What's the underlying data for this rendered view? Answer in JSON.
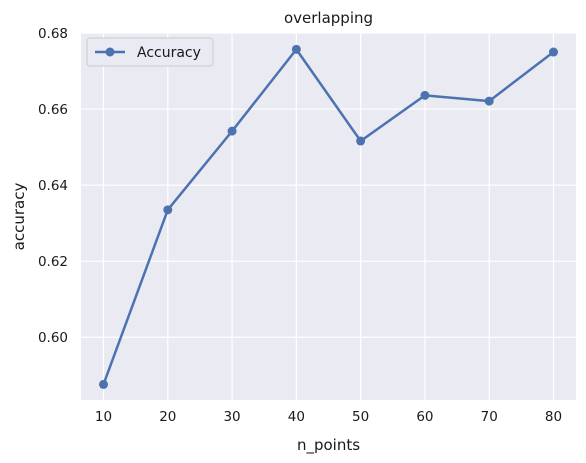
{
  "chart_data": {
    "type": "line",
    "title": "overlapping",
    "xlabel": "n_points",
    "ylabel": "accuracy",
    "x": [
      10,
      20,
      30,
      40,
      50,
      60,
      70,
      80
    ],
    "xticks": [
      "10",
      "20",
      "30",
      "40",
      "50",
      "60",
      "70",
      "80"
    ],
    "yticks": [
      "0.60",
      "0.62",
      "0.64",
      "0.66",
      "0.68"
    ],
    "xlim": [
      6.5,
      83.5
    ],
    "ylim": [
      0.5835,
      0.68
    ],
    "grid": true,
    "legend_position": "top-left",
    "series": [
      {
        "name": "Accuracy",
        "color": "#4c72b0",
        "marker": "circle",
        "values": [
          0.5876,
          0.6335,
          0.6542,
          0.6757,
          0.6516,
          0.6636,
          0.6621,
          0.675
        ]
      }
    ]
  },
  "colors": {
    "plot_background": "#eaeaf2",
    "grid": "#ffffff",
    "text": "#1a1a1a"
  }
}
